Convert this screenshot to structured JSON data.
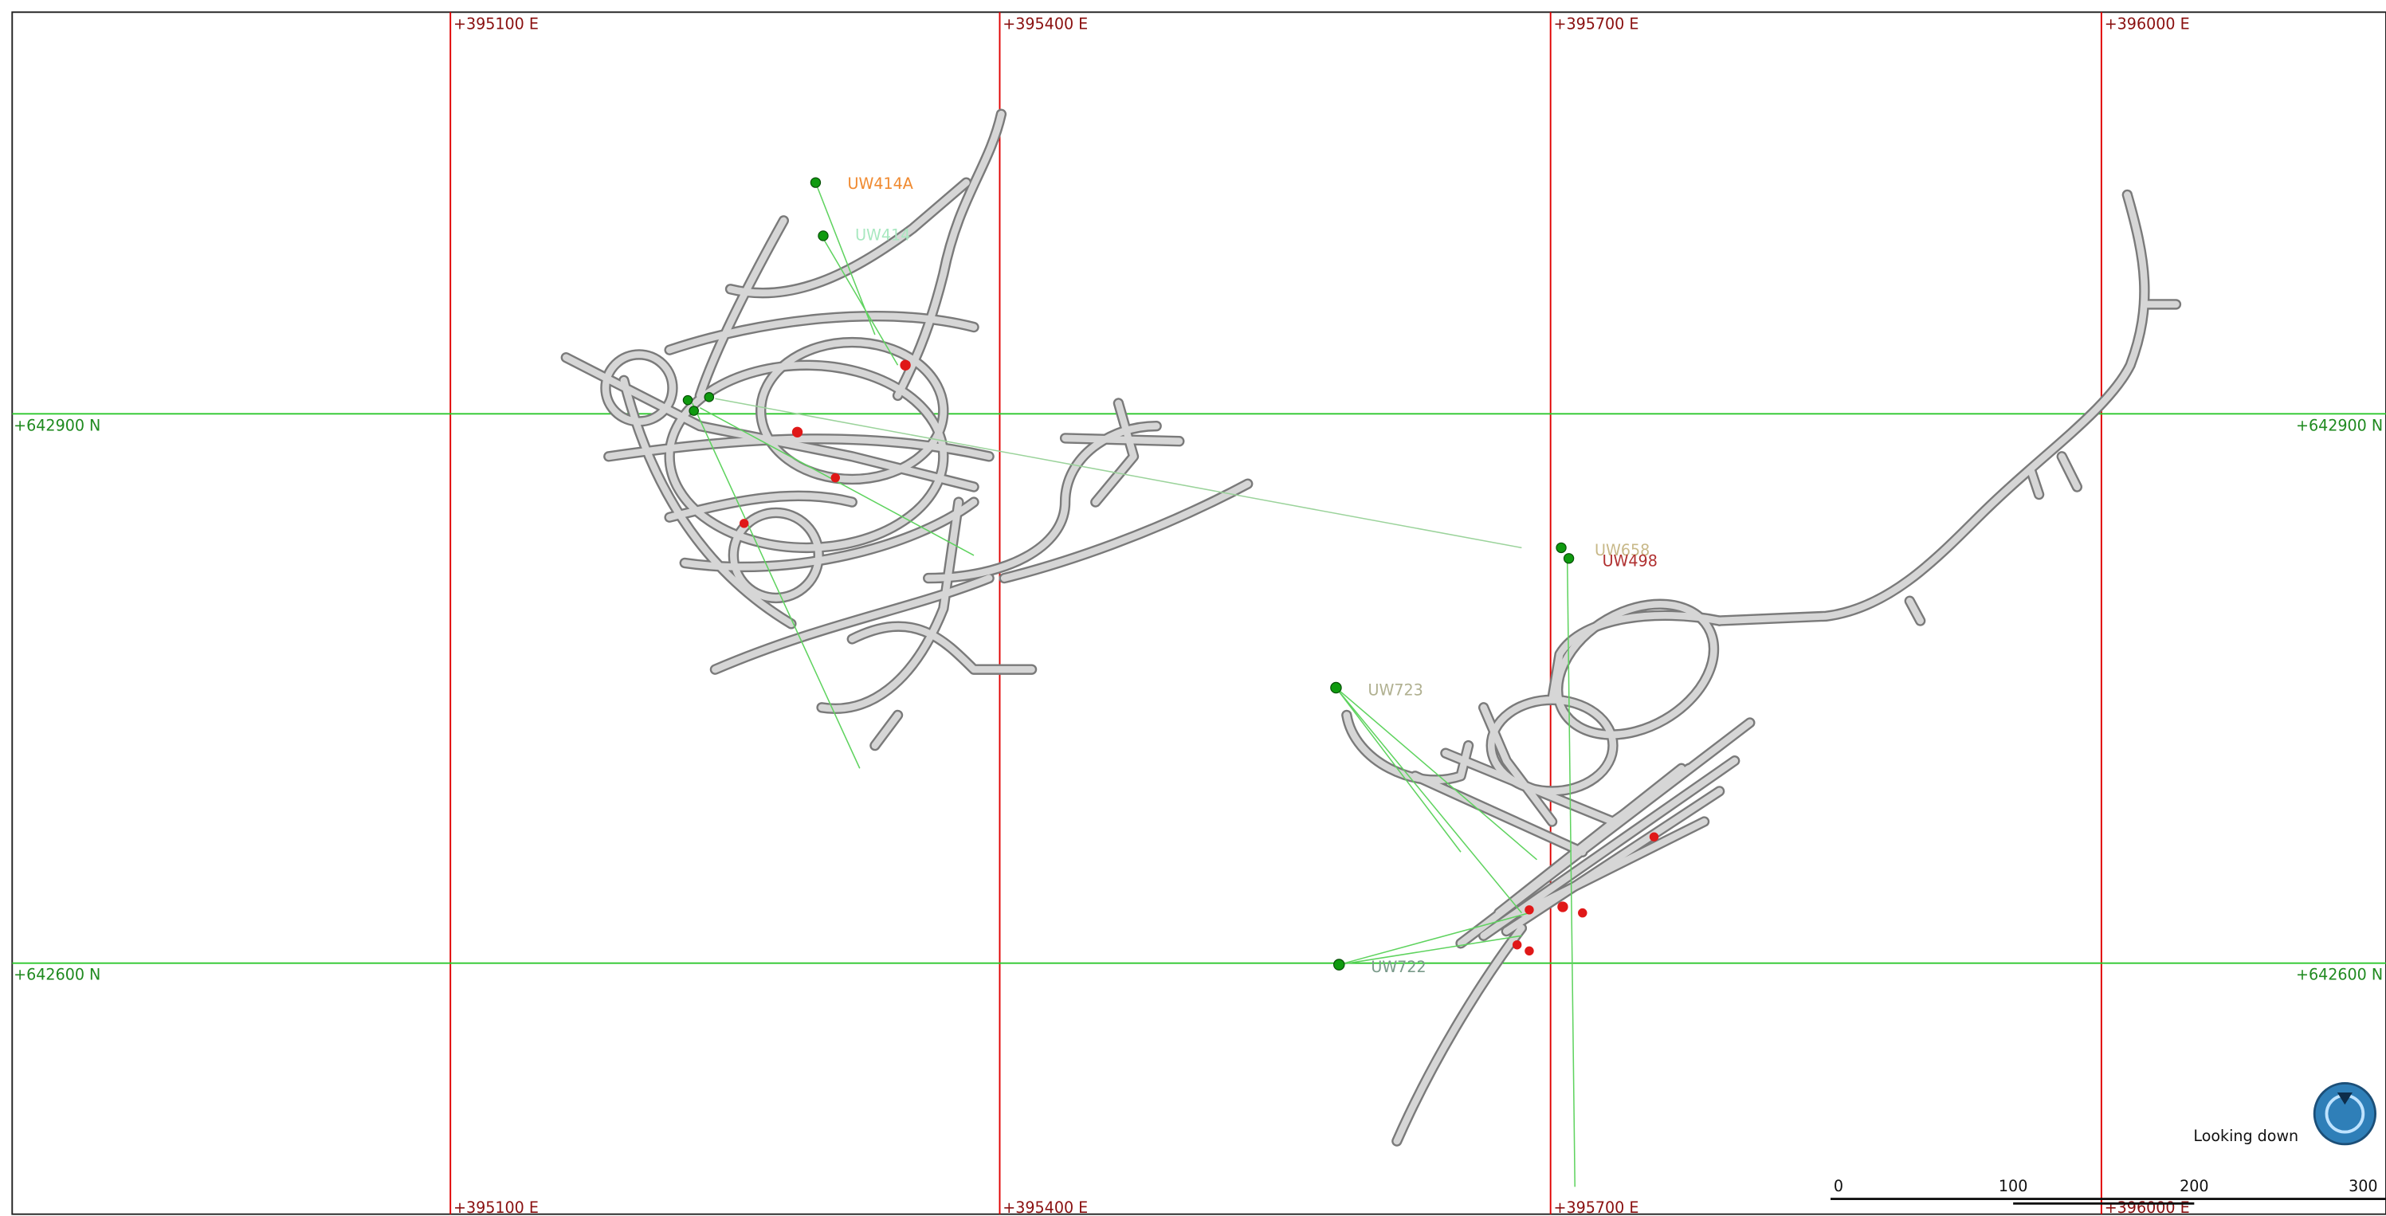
{
  "grid": {
    "eastings": [
      "+395100 E",
      "+395400 E",
      "+395700 E",
      "+396000 E"
    ],
    "northings": [
      "+642900 N",
      "+642600 N"
    ],
    "easting_color": "#e00000",
    "northing_color": "#2ec82e"
  },
  "drillholes": [
    {
      "label": "UW414A",
      "color": "#f08a30"
    },
    {
      "label": "UW414",
      "color": "#a8e8c0"
    },
    {
      "label": "UW658",
      "color": "#c8b888"
    },
    {
      "label": "UW498",
      "color": "#b03030"
    },
    {
      "label": "UW723",
      "color": "#b0b090"
    },
    {
      "label": "UW722",
      "color": "#7a9a8a"
    }
  ],
  "view_label": "Looking down",
  "scale_bar": {
    "labels": [
      "0",
      "100",
      "200",
      "300"
    ]
  }
}
